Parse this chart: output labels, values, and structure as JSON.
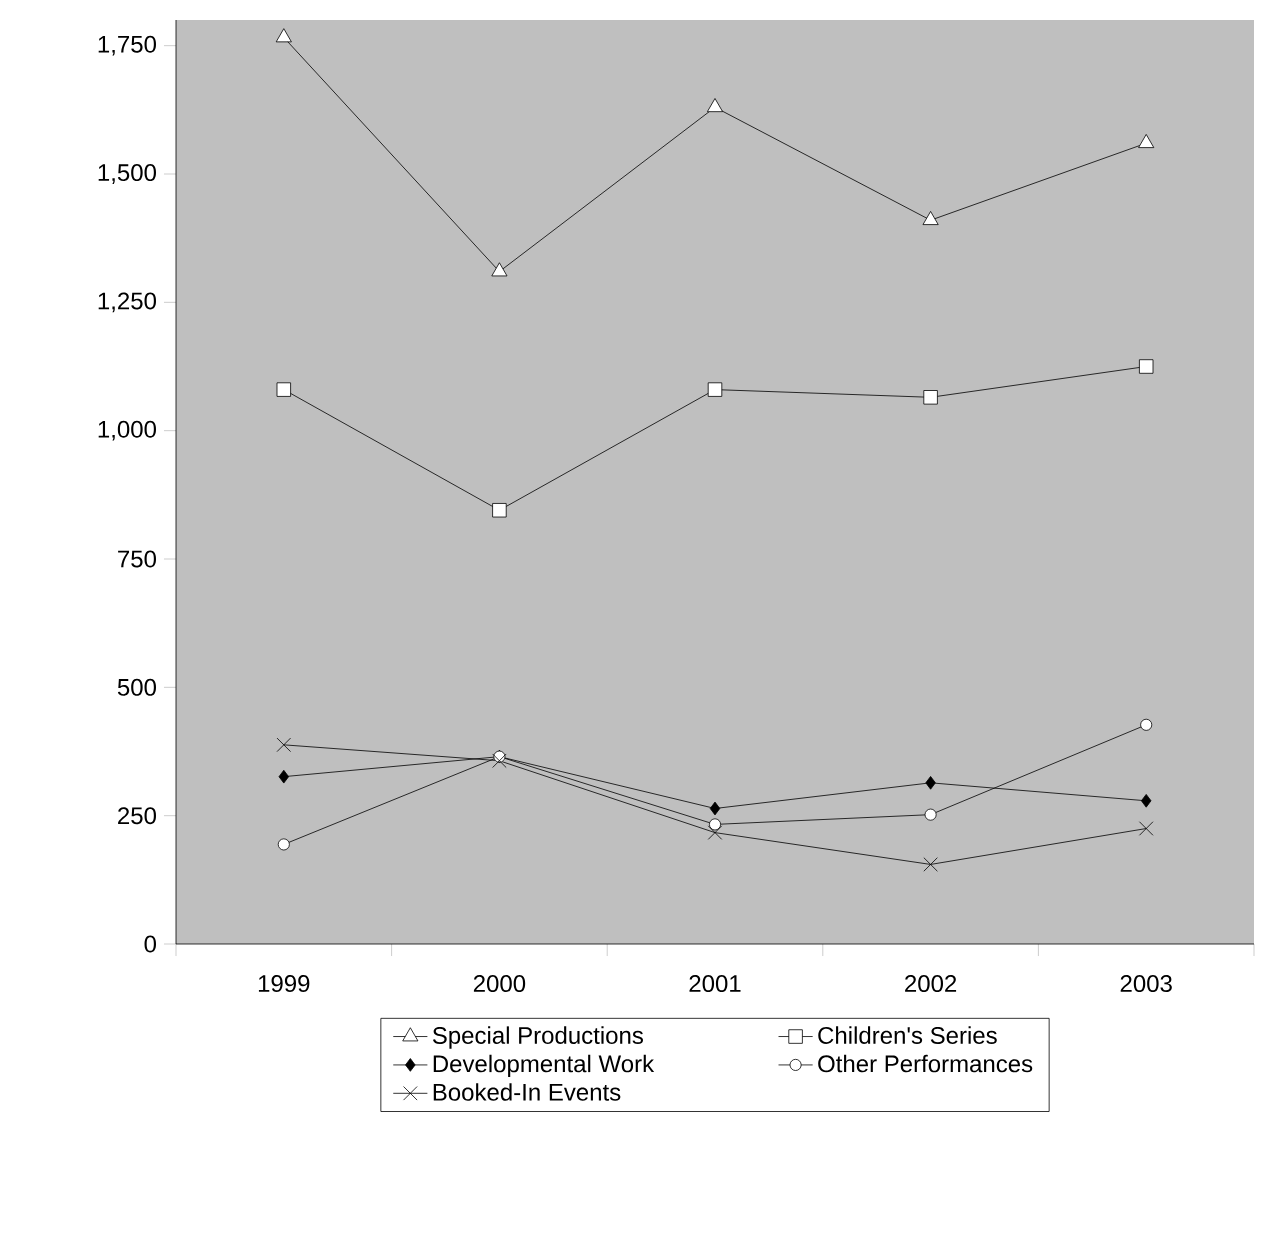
{
  "chart_data": {
    "type": "line",
    "categories": [
      "1999",
      "2000",
      "2001",
      "2002",
      "2003"
    ],
    "series": [
      {
        "name": "Special Productions",
        "color": "#000000",
        "marker": "triangle",
        "values": [
          1766,
          1310,
          1630,
          1410,
          1560
        ]
      },
      {
        "name": "Children's Series",
        "color": "#000000",
        "marker": "square",
        "values": [
          1080,
          845,
          1080,
          1065,
          1125
        ]
      },
      {
        "name": "Developmental Work",
        "color": "#000000",
        "marker": "diamond",
        "values": [
          326,
          365,
          264,
          314,
          279
        ]
      },
      {
        "name": "Other Performances",
        "color": "#000000",
        "marker": "circle",
        "values": [
          194,
          365,
          233,
          252,
          427
        ]
      },
      {
        "name": "Booked-In Events",
        "color": "#000000",
        "marker": "cross",
        "values": [
          388,
          357,
          217,
          155,
          225
        ]
      }
    ],
    "ylim": [
      0,
      1800
    ],
    "yticks": [
      0,
      250,
      500,
      750,
      {
        "value": 1000,
        "label": "1,000"
      },
      {
        "value": 1250,
        "label": "1,250"
      },
      {
        "value": 1500,
        "label": "1,500"
      },
      {
        "value": 1750,
        "label": "1,750"
      }
    ],
    "legend": "bottom",
    "grid": false,
    "line_style": "solid"
  }
}
